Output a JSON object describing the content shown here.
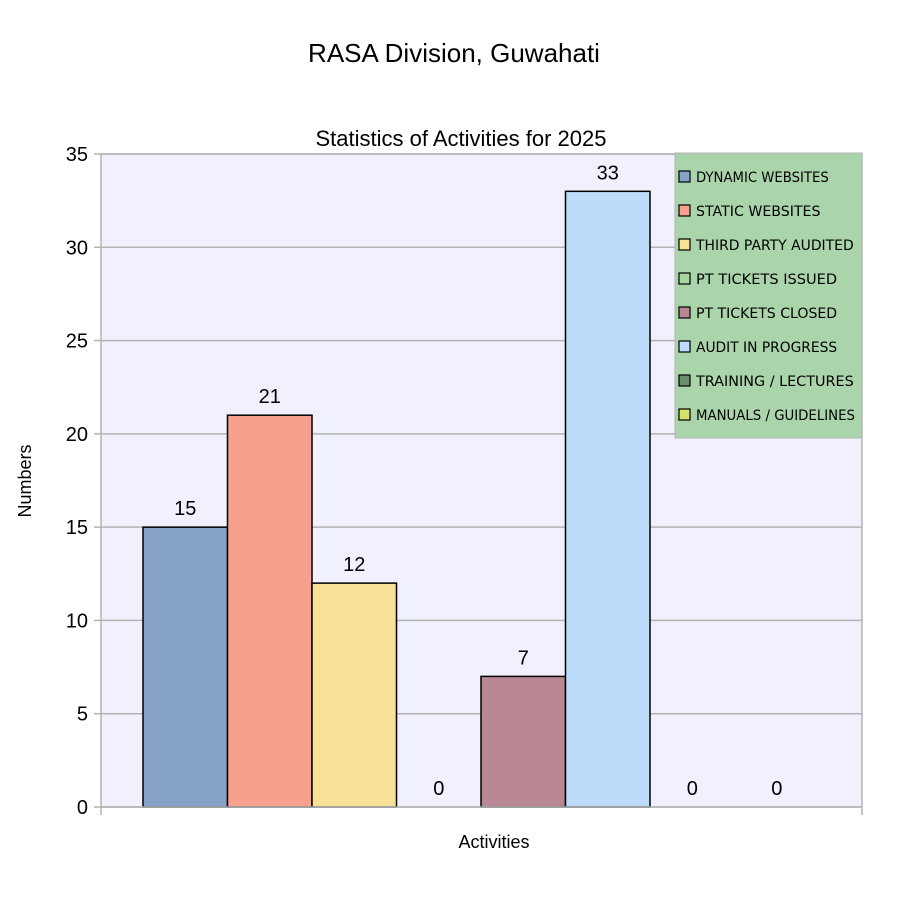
{
  "chart_data": {
    "type": "bar",
    "title": "RASA Division, Guwahati",
    "subtitle": "Statistics of Activities for 2025",
    "xlabel": "Activities",
    "ylabel": "Numbers",
    "ylim": [
      0,
      35
    ],
    "yticks": [
      0,
      5,
      10,
      15,
      20,
      25,
      30,
      35
    ],
    "grid": true,
    "legend_position": "top-right",
    "series": [
      {
        "name": "DYNAMIC WEBSITES",
        "value": 15,
        "color": "#86a2c6"
      },
      {
        "name": "STATIC WEBSITES",
        "value": 21,
        "color": "#f7a08e"
      },
      {
        "name": "THIRD PARTY AUDITED",
        "value": 12,
        "color": "#f7e197"
      },
      {
        "name": "PT TICKETS ISSUED",
        "value": 0,
        "color": "#a8d69e"
      },
      {
        "name": "PT TICKETS CLOSED",
        "value": 7,
        "color": "#b98794"
      },
      {
        "name": "AUDIT IN PROGRESS",
        "value": 33,
        "color": "#bcdcfc"
      },
      {
        "name": "TRAINING / LECTURES",
        "value": 0,
        "color": "#6b8e6b"
      },
      {
        "name": "MANUALS / GUIDELINES",
        "value": 0,
        "color": "#d6e06a"
      }
    ],
    "plot_background": "#f1f1fe",
    "legend_background": "#aad4aa",
    "gridline_color": "#b3b3b3"
  }
}
